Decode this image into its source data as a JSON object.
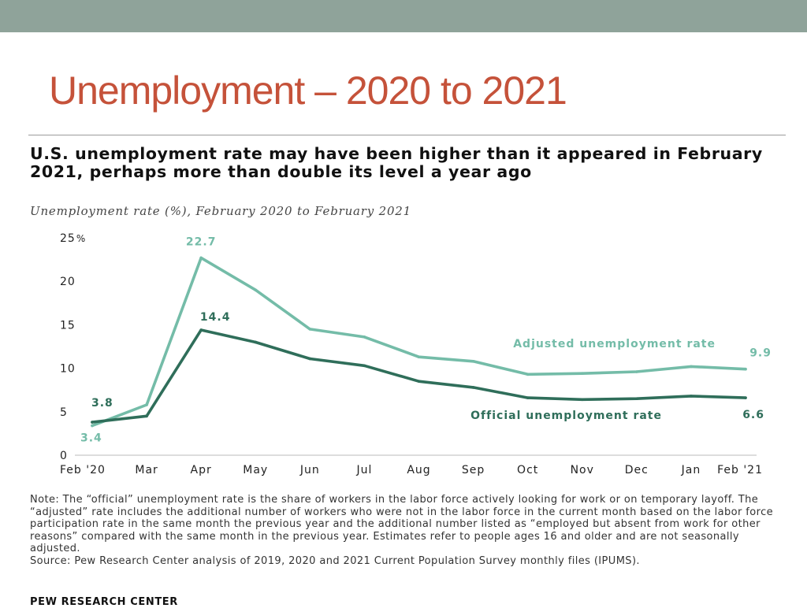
{
  "slide": {
    "title": "Unemployment – 2020 to 2021"
  },
  "colors": {
    "topbar": "#8fa39a",
    "title": "#c5523a",
    "adjusted": "#74bca8",
    "official": "#2f6e5a"
  },
  "chart_data": {
    "type": "line",
    "title": "U.S. unemployment rate may have been higher than it appeared in February 2021, perhaps more than double its level a year ago",
    "subtitle": "Unemployment rate (%), February 2020 to February 2021",
    "categories": [
      "Feb '20",
      "Mar",
      "Apr",
      "May",
      "Jun",
      "Jul",
      "Aug",
      "Sep",
      "Oct",
      "Nov",
      "Dec",
      "Jan",
      "Feb '21"
    ],
    "ylim": [
      0,
      25
    ],
    "yticks": [
      "0",
      "5",
      "10",
      "15",
      "20",
      "25"
    ],
    "ytick_unit": "%",
    "grid": false,
    "series": [
      {
        "name": "Adjusted unemployment rate",
        "color": "#74bca8",
        "values": [
          3.4,
          5.8,
          22.7,
          19.0,
          14.5,
          13.6,
          11.3,
          10.8,
          9.3,
          9.4,
          9.6,
          10.2,
          9.9
        ]
      },
      {
        "name": "Official unemployment rate",
        "color": "#2f6e5a",
        "values": [
          3.8,
          4.5,
          14.4,
          13.0,
          11.1,
          10.3,
          8.5,
          7.8,
          6.6,
          6.4,
          6.5,
          6.8,
          6.6
        ]
      }
    ],
    "annotations": [
      {
        "series": 0,
        "index": 0,
        "text": "3.4"
      },
      {
        "series": 1,
        "index": 0,
        "text": "3.8"
      },
      {
        "series": 0,
        "index": 2,
        "text": "22.7"
      },
      {
        "series": 1,
        "index": 2,
        "text": "14.4"
      },
      {
        "series": 0,
        "index": 12,
        "text": "9.9"
      },
      {
        "series": 1,
        "index": 12,
        "text": "6.6"
      }
    ]
  },
  "note": {
    "text": "Note: The “official” unemployment rate is the share of workers in the labor force actively looking for work or on temporary layoff. The “adjusted” rate includes the additional number of workers who were not in the labor force in the current month based on the labor force participation rate in the same month the previous year and the additional number listed as “employed but absent from work for other reasons” compared with the same month in the previous year. Estimates refer to people ages 16 and older and are not seasonally adjusted.",
    "source": "Source: Pew Research Center analysis of 2019, 2020 and 2021 Current Population Survey monthly files (IPUMS)."
  },
  "credit": "PEW RESEARCH CENTER"
}
